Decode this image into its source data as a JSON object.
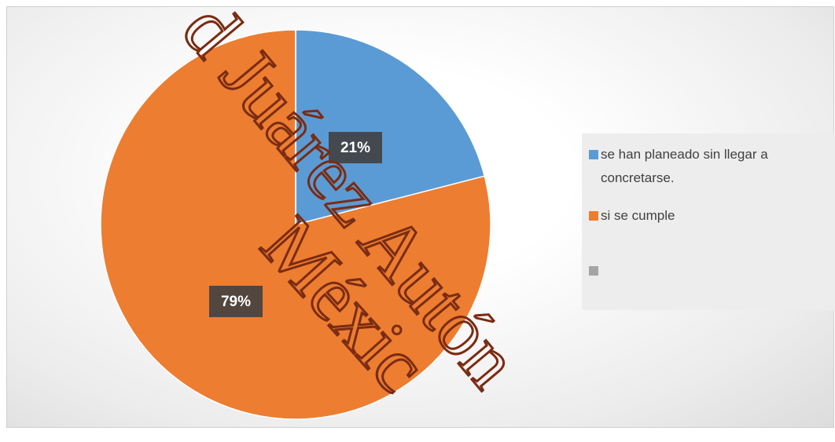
{
  "chart_data": {
    "type": "pie",
    "categories": [
      "se han planeado sin llegar a concretarse.",
      "si  se cumple",
      null
    ],
    "values": [
      21,
      79,
      0
    ],
    "value_labels": [
      "21%",
      "79%",
      null
    ],
    "colors": [
      "#5b9bd5",
      "#ed7d31",
      "#a5a5a5"
    ],
    "watermark": [
      "d Juárez Autón",
      "Méxic"
    ]
  }
}
